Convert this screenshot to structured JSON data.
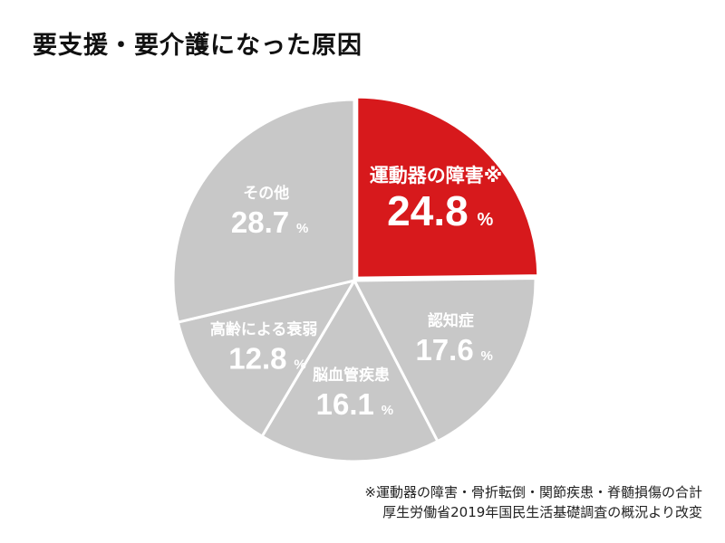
{
  "title": "要支援・要介護になった原因",
  "chart_data": {
    "type": "pie",
    "title": "要支援・要介護になった原因",
    "slices": [
      {
        "label": "運動器の障害※",
        "value": 24.8,
        "display": "24.8",
        "unit": "%",
        "color": "#d7191c"
      },
      {
        "label": "認知症",
        "value": 17.6,
        "display": "17.6",
        "unit": "%",
        "color": "#c8c8c8"
      },
      {
        "label": "脳血管疾患",
        "value": 16.1,
        "display": "16.1",
        "unit": "%",
        "color": "#c8c8c8"
      },
      {
        "label": "高齢による衰弱",
        "value": 12.8,
        "display": "12.8",
        "unit": "%",
        "color": "#c8c8c8"
      },
      {
        "label": "その他",
        "value": 28.7,
        "display": "28.7",
        "unit": "%",
        "color": "#c8c8c8"
      }
    ],
    "start_angle": "12 o'clock",
    "direction": "clockwise",
    "slice_border_color": "#ffffff",
    "highlight_color": "#d7191c",
    "neutral_color": "#c8c8c8"
  },
  "notes": [
    "※運動器の障害・骨折転倒・関節疾患・脊髄損傷の合計",
    "厚生労働省2019年国民生活基礎調査の概況より改変"
  ]
}
